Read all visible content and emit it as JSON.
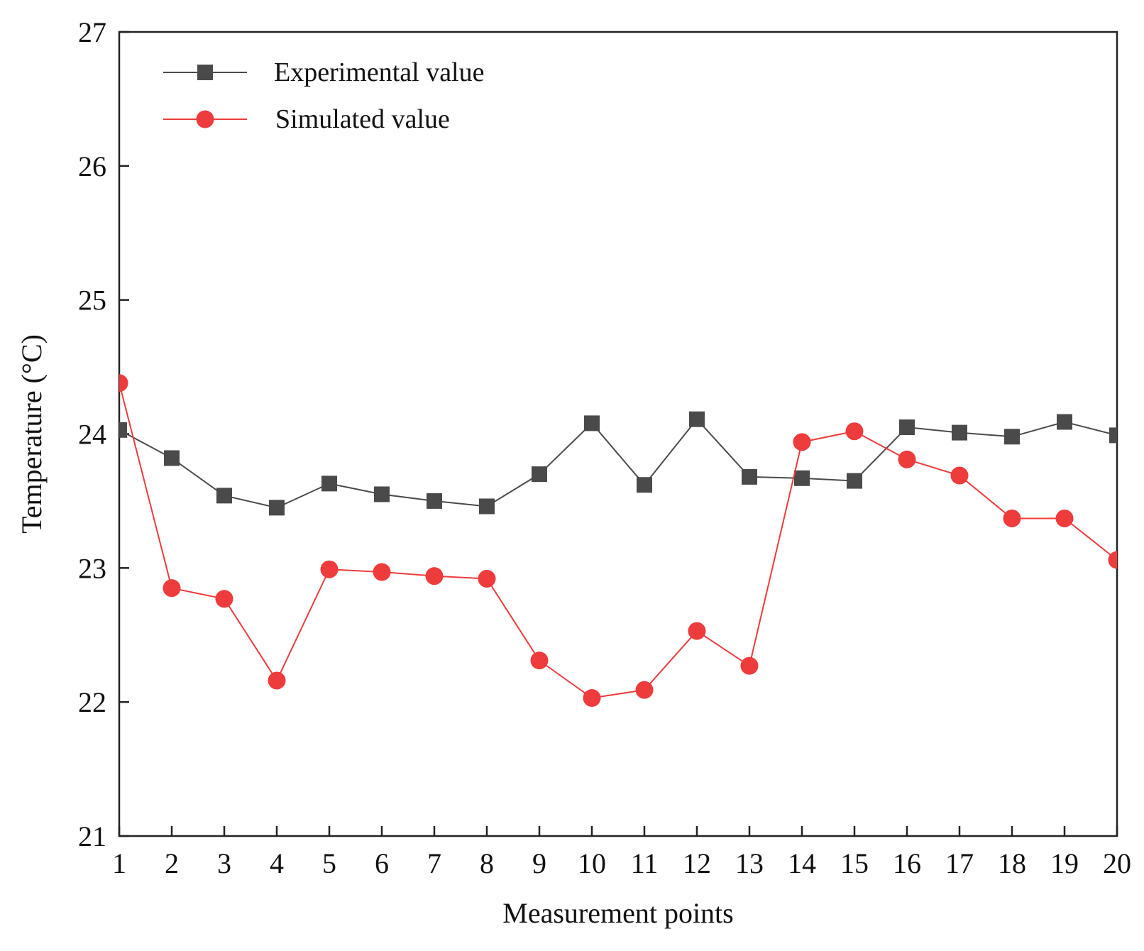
{
  "chart_data": {
    "type": "line",
    "title": "",
    "xlabel": "Measurement points",
    "ylabel": "Temperature (°C)",
    "x": [
      1,
      2,
      3,
      4,
      5,
      6,
      7,
      8,
      9,
      10,
      11,
      12,
      13,
      14,
      15,
      16,
      17,
      18,
      19,
      20
    ],
    "xlim": [
      1,
      20
    ],
    "ylim": [
      21,
      27
    ],
    "yticks": [
      21,
      22,
      23,
      24,
      25,
      26,
      27
    ],
    "grid": false,
    "legend_position": "top-left",
    "series": [
      {
        "name": "Experimental value",
        "marker": "square",
        "color": "#4a4a4a",
        "values": [
          24.03,
          23.82,
          23.54,
          23.45,
          23.63,
          23.55,
          23.5,
          23.46,
          23.7,
          24.08,
          23.62,
          24.11,
          23.68,
          23.67,
          23.65,
          24.05,
          24.01,
          23.98,
          24.09,
          23.99
        ]
      },
      {
        "name": "Simulated value",
        "marker": "circle",
        "color": "#ee3b3b",
        "values": [
          24.38,
          22.85,
          22.77,
          22.16,
          22.99,
          22.97,
          22.94,
          22.92,
          22.31,
          22.03,
          22.09,
          22.53,
          22.27,
          23.94,
          24.02,
          23.81,
          23.69,
          23.37,
          23.37,
          23.06
        ]
      }
    ]
  }
}
